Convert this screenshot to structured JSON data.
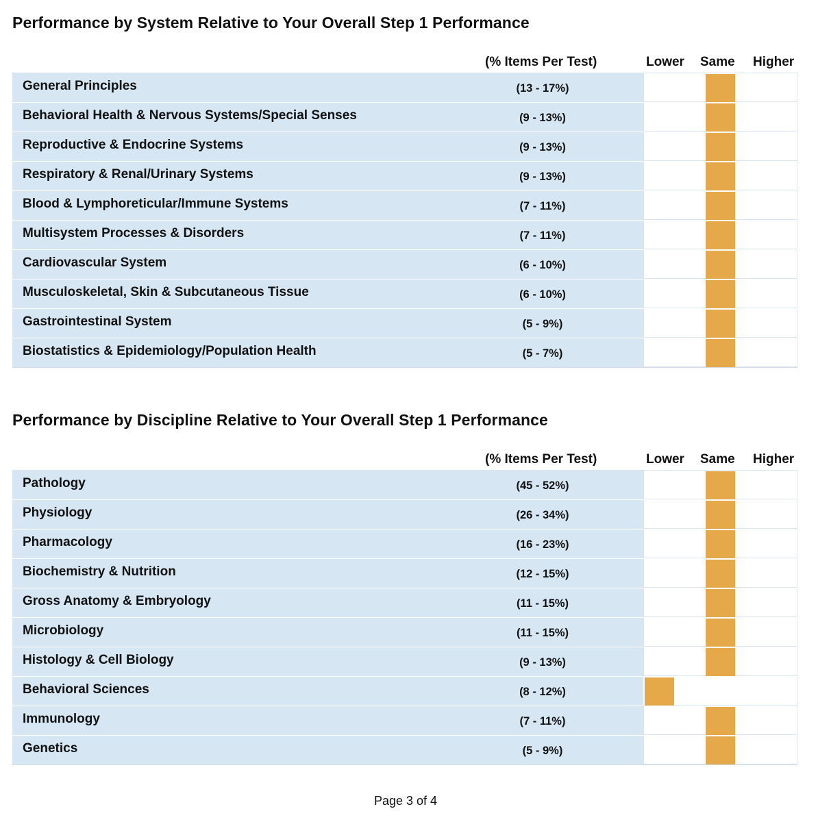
{
  "sections": [
    {
      "title": "Performance by System Relative to Your Overall Step 1 Performance",
      "header": {
        "pct": "(% Items Per Test)",
        "lower": "Lower",
        "same": "Same",
        "higher": "Higher"
      },
      "rows": [
        {
          "label": "General Principles",
          "pct": "(13 - 17%)",
          "level": "same"
        },
        {
          "label": "Behavioral Health & Nervous Systems/Special Senses",
          "pct": "(9 - 13%)",
          "level": "same"
        },
        {
          "label": "Reproductive & Endocrine Systems",
          "pct": "(9 - 13%)",
          "level": "same"
        },
        {
          "label": "Respiratory & Renal/Urinary Systems",
          "pct": "(9 - 13%)",
          "level": "same"
        },
        {
          "label": "Blood & Lymphoreticular/Immune Systems",
          "pct": "(7 - 11%)",
          "level": "same"
        },
        {
          "label": "Multisystem Processes & Disorders",
          "pct": "(7 - 11%)",
          "level": "same"
        },
        {
          "label": "Cardiovascular System",
          "pct": "(6 - 10%)",
          "level": "same"
        },
        {
          "label": "Musculoskeletal, Skin & Subcutaneous Tissue",
          "pct": "(6 - 10%)",
          "level": "same"
        },
        {
          "label": "Gastrointestinal System",
          "pct": "(5 - 9%)",
          "level": "same"
        },
        {
          "label": "Biostatistics & Epidemiology/Population Health",
          "pct": "(5 - 7%)",
          "level": "same"
        }
      ]
    },
    {
      "title": "Performance by Discipline Relative to Your Overall Step 1 Performance",
      "header": {
        "pct": "(% Items Per Test)",
        "lower": "Lower",
        "same": "Same",
        "higher": "Higher"
      },
      "rows": [
        {
          "label": "Pathology",
          "pct": "(45 - 52%)",
          "level": "same"
        },
        {
          "label": "Physiology",
          "pct": "(26 - 34%)",
          "level": "same"
        },
        {
          "label": "Pharmacology",
          "pct": "(16 - 23%)",
          "level": "same"
        },
        {
          "label": "Biochemistry & Nutrition",
          "pct": "(12 - 15%)",
          "level": "same"
        },
        {
          "label": "Gross Anatomy & Embryology",
          "pct": "(11 - 15%)",
          "level": "same"
        },
        {
          "label": "Microbiology",
          "pct": "(11 - 15%)",
          "level": "same"
        },
        {
          "label": "Histology & Cell Biology",
          "pct": "(9 - 13%)",
          "level": "same"
        },
        {
          "label": "Behavioral Sciences",
          "pct": "(8 - 12%)",
          "level": "lower"
        },
        {
          "label": "Immunology",
          "pct": "(7 - 11%)",
          "level": "same"
        },
        {
          "label": "Genetics",
          "pct": "(5 - 9%)",
          "level": "same"
        }
      ]
    }
  ],
  "colors": {
    "bar": "#e5a94a",
    "row_bg": "#d7e6f3"
  },
  "footer": "Page 3 of 4"
}
